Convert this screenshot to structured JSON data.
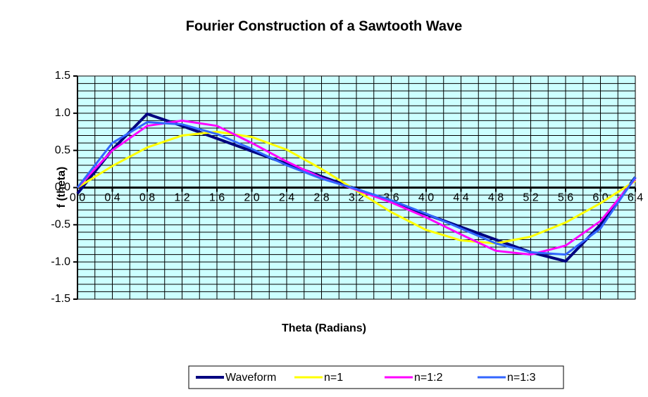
{
  "chart_data": {
    "type": "line",
    "title": "Fourier Construction of a Sawtooth Wave",
    "xlabel": "Theta (Radians)",
    "ylabel": "f (theta)",
    "x": [
      0,
      0.4,
      0.8,
      1.2,
      1.6,
      2.0,
      2.4,
      2.8,
      3.2,
      3.6,
      4.0,
      4.4,
      4.8,
      5.2,
      5.6,
      6.0,
      6.4
    ],
    "series": [
      {
        "name": "Waveform",
        "color": "#000080",
        "values": [
          -0.08,
          0.51,
          0.99,
          0.83,
          0.66,
          0.49,
          0.32,
          0.15,
          -0.02,
          -0.19,
          -0.36,
          -0.53,
          -0.7,
          -0.87,
          -0.99,
          -0.5,
          0.14
        ]
      },
      {
        "name": "n=1",
        "color": "#ffff00",
        "values": [
          0,
          0.29,
          0.54,
          0.7,
          0.75,
          0.68,
          0.51,
          0.25,
          -0.04,
          -0.33,
          -0.57,
          -0.71,
          -0.75,
          -0.66,
          -0.47,
          -0.21,
          0.09
        ]
      },
      {
        "name": "n=1:2",
        "color": "#ff00ff",
        "values": [
          0,
          0.5,
          0.83,
          0.9,
          0.83,
          0.6,
          0.35,
          0.13,
          -0.03,
          -0.2,
          -0.4,
          -0.63,
          -0.85,
          -0.9,
          -0.78,
          -0.45,
          0.12
        ]
      },
      {
        "name": "n=1:3",
        "color": "#3366ff",
        "values": [
          0,
          0.6,
          0.88,
          0.85,
          0.72,
          0.52,
          0.3,
          0.12,
          -0.02,
          -0.17,
          -0.35,
          -0.55,
          -0.75,
          -0.87,
          -0.9,
          -0.55,
          0.14
        ]
      }
    ],
    "xlim": [
      0,
      6.4
    ],
    "xticks": [
      {
        "value": 0,
        "label": "0.0"
      },
      0.4,
      0.8,
      1.2,
      1.6,
      {
        "value": 2,
        "label": "2.0"
      },
      2.4,
      2.8,
      3.2,
      3.6,
      {
        "value": 4,
        "label": "4.0"
      },
      4.4,
      4.8,
      5.2,
      5.6,
      {
        "value": 6,
        "label": "6.0"
      },
      6.4
    ],
    "ylim": [
      -1.5,
      1.5
    ],
    "yticks": [
      -1.5,
      {
        "value": -1,
        "label": "-1.0"
      },
      -0.5,
      {
        "value": 0,
        "label": "0.0"
      },
      0.5,
      {
        "value": 1,
        "label": "1.0"
      },
      1.5
    ],
    "grid": true,
    "legend": "bottom"
  }
}
